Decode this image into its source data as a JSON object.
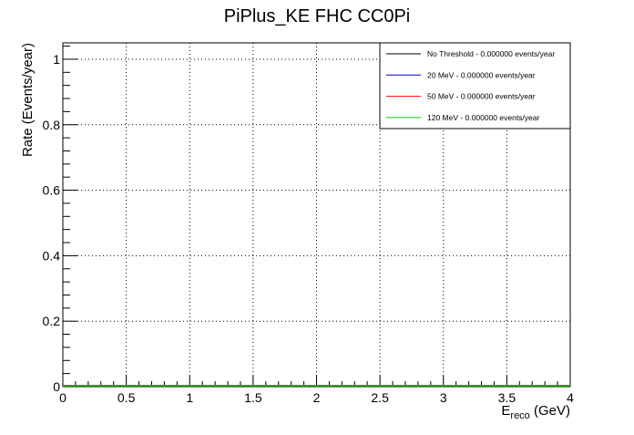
{
  "chart_data": {
    "type": "line",
    "title": "PiPlus_KE FHC CC0Pi",
    "xlabel_main": "E",
    "xlabel_sub": "reco",
    "xlabel_unit": " (GeV)",
    "ylabel": "Rate (Events/year)",
    "xlim": [
      0,
      4
    ],
    "ylim": [
      0,
      1.05
    ],
    "x_ticks": [
      0,
      0.5,
      1,
      1.5,
      2,
      2.5,
      3,
      3.5,
      4
    ],
    "y_ticks": [
      0,
      0.2,
      0.4,
      0.6,
      0.8,
      1
    ],
    "x_tick_labels": [
      "0",
      "0.5",
      "1",
      "1.5",
      "2",
      "2.5",
      "3",
      "3.5",
      "4"
    ],
    "y_tick_labels": [
      "0",
      "0.2",
      "0.4",
      "0.6",
      "0.8",
      "1"
    ],
    "grid": true,
    "legend_position": "top-right",
    "series": [
      {
        "name": "No Threshold - 0.000000 events/year",
        "color": "#000000",
        "x": [
          0,
          4
        ],
        "y": [
          0,
          0
        ]
      },
      {
        "name": "20 MeV - 0.000000 events/year",
        "color": "#0000cc",
        "x": [
          0,
          4
        ],
        "y": [
          0,
          0
        ]
      },
      {
        "name": "50 MeV - 0.000000 events/year",
        "color": "#ff0000",
        "x": [
          0,
          4
        ],
        "y": [
          0,
          0
        ]
      },
      {
        "name": "120 MeV - 0.000000 events/year",
        "color": "#00cc00",
        "x": [
          0,
          4
        ],
        "y": [
          0,
          0
        ]
      }
    ]
  }
}
